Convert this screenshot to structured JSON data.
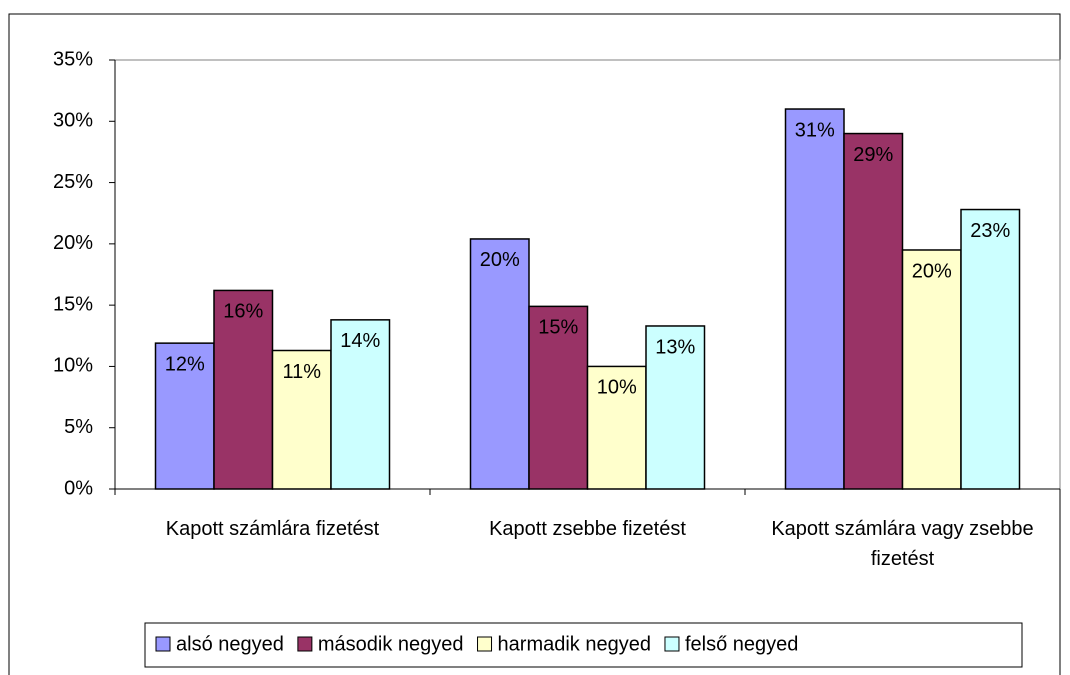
{
  "chart_data": {
    "type": "bar",
    "categories": [
      "Kapott számlára fizetést",
      "Kapott zsebbe fizetést",
      "Kapott számlára vagy zsebbe fizetést"
    ],
    "series": [
      {
        "name": "alsó negyed",
        "color": "#9999ff",
        "values": [
          11.9,
          20.4,
          31
        ],
        "value_labels": [
          "12%",
          "20%",
          "31%"
        ]
      },
      {
        "name": "második negyed",
        "color": "#993366",
        "values": [
          16.2,
          14.9,
          29
        ],
        "value_labels": [
          "16%",
          "15%",
          "29%"
        ]
      },
      {
        "name": "harmadik negyed",
        "color": "#ffffcc",
        "values": [
          11.3,
          10,
          19.5
        ],
        "value_labels": [
          "11%",
          "10%",
          "20%"
        ]
      },
      {
        "name": "felső negyed",
        "color": "#ccffff",
        "values": [
          13.8,
          13.3,
          22.8
        ],
        "value_labels": [
          "14%",
          "13%",
          "23%"
        ]
      }
    ],
    "ylim": [
      0,
      35
    ],
    "yticks": [
      {
        "value": 0,
        "label": "0%"
      },
      {
        "value": 5,
        "label": "5%"
      },
      {
        "value": 10,
        "label": "10%"
      },
      {
        "value": 15,
        "label": "15%"
      },
      {
        "value": 20,
        "label": "20%"
      },
      {
        "value": 25,
        "label": "25%"
      },
      {
        "value": 30,
        "label": "30%"
      },
      {
        "value": 35,
        "label": "35%"
      }
    ],
    "legend": "bottom"
  }
}
